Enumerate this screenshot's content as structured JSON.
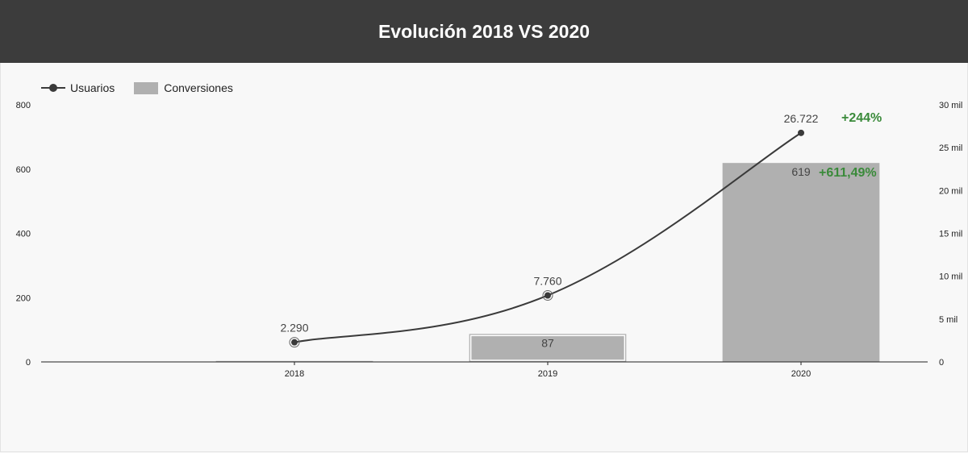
{
  "header": {
    "title": "Evolución 2018 VS 2020"
  },
  "legend": {
    "line_label": "Usuarios",
    "bar_label": "Conversiones"
  },
  "colors": {
    "header_bg": "#3c3c3c",
    "bar": "#b0b0b0",
    "line": "#3a3a3a",
    "growth": "#3a8a3a",
    "background": "#f8f8f8"
  },
  "chart_data": {
    "type": "bar",
    "categories": [
      "2018",
      "2019",
      "2020"
    ],
    "series": [
      {
        "name": "Conversiones",
        "type": "bar",
        "axis": "left",
        "values": [
          3,
          87,
          619
        ],
        "labels": [
          "",
          "87",
          "619"
        ]
      },
      {
        "name": "Usuarios",
        "type": "line",
        "axis": "right",
        "values": [
          2290,
          7760,
          26722
        ],
        "labels": [
          "2.290",
          "7.760",
          "26.722"
        ]
      }
    ],
    "y_left": {
      "ylim": [
        0,
        800
      ],
      "ticks": [
        0,
        200,
        400,
        600,
        800
      ],
      "tick_labels": [
        "0",
        "200",
        "400",
        "600",
        "800"
      ]
    },
    "y_right": {
      "ylim": [
        0,
        30000
      ],
      "ticks": [
        0,
        5000,
        10000,
        15000,
        20000,
        25000,
        30000
      ],
      "tick_labels": [
        "0",
        "5 mil",
        "10 mil",
        "15 mil",
        "20 mil",
        "25 mil",
        "30 mil"
      ]
    },
    "annotations": [
      {
        "text": "+244%",
        "series": "Usuarios",
        "category": "2020"
      },
      {
        "text": "+611,49%",
        "series": "Conversiones",
        "category": "2020"
      }
    ],
    "legend_position": "top-left",
    "grid": false
  }
}
